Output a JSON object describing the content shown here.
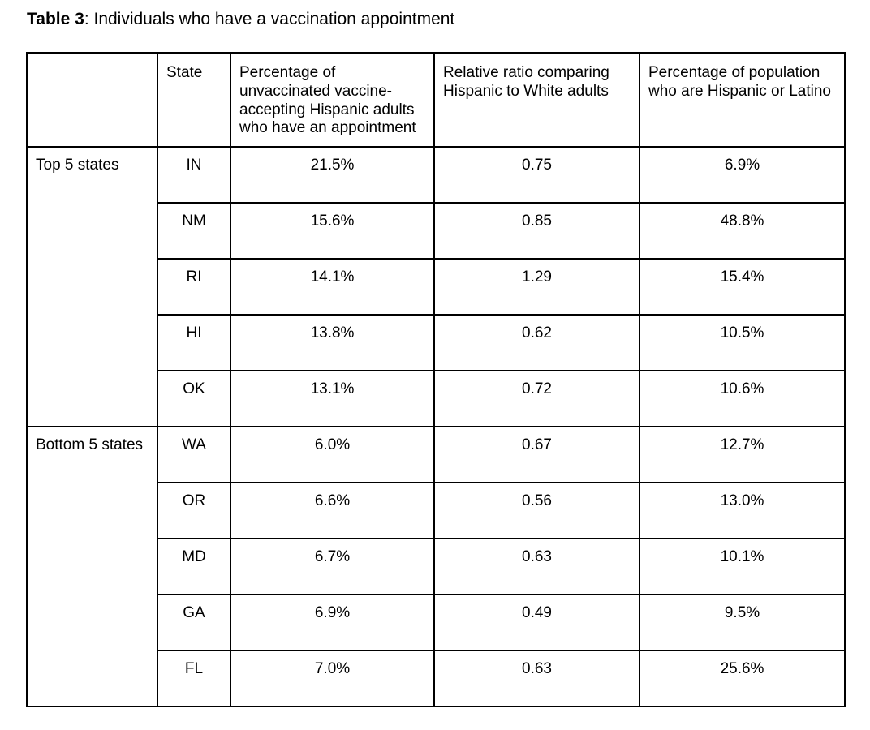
{
  "caption": {
    "bold": "Table 3",
    "text": ": Individuals who have a vaccination appointment"
  },
  "colors": {
    "background": "#ffffff",
    "text": "#000000",
    "border": "#000000"
  },
  "table": {
    "columns": {
      "group": "",
      "state": "State",
      "pct_appointment": "Percentage of unvaccinated vaccine-accepting Hispanic adults who have an appointment",
      "relative_ratio": "Relative ratio comparing Hispanic to White adults",
      "pct_hispanic": "Percentage of population who are Hispanic or Latino"
    },
    "groups": [
      {
        "label": "Top 5 states",
        "rows": [
          {
            "state": "IN",
            "pct_appointment": "21.5%",
            "relative_ratio": "0.75",
            "pct_hispanic": "6.9%"
          },
          {
            "state": "NM",
            "pct_appointment": "15.6%",
            "relative_ratio": "0.85",
            "pct_hispanic": "48.8%"
          },
          {
            "state": "RI",
            "pct_appointment": "14.1%",
            "relative_ratio": "1.29",
            "pct_hispanic": "15.4%"
          },
          {
            "state": "HI",
            "pct_appointment": "13.8%",
            "relative_ratio": "0.62",
            "pct_hispanic": "10.5%"
          },
          {
            "state": "OK",
            "pct_appointment": "13.1%",
            "relative_ratio": "0.72",
            "pct_hispanic": "10.6%"
          }
        ]
      },
      {
        "label": "Bottom 5 states",
        "rows": [
          {
            "state": "WA",
            "pct_appointment": "6.0%",
            "relative_ratio": "0.67",
            "pct_hispanic": "12.7%"
          },
          {
            "state": "OR",
            "pct_appointment": "6.6%",
            "relative_ratio": "0.56",
            "pct_hispanic": "13.0%"
          },
          {
            "state": "MD",
            "pct_appointment": "6.7%",
            "relative_ratio": "0.63",
            "pct_hispanic": "10.1%"
          },
          {
            "state": "GA",
            "pct_appointment": "6.9%",
            "relative_ratio": "0.49",
            "pct_hispanic": "9.5%"
          },
          {
            "state": "FL",
            "pct_appointment": "7.0%",
            "relative_ratio": "0.63",
            "pct_hispanic": "25.6%"
          }
        ]
      }
    ]
  },
  "chart_data": {
    "type": "table",
    "title": "Table 3: Individuals who have a vaccination appointment",
    "columns": [
      "",
      "State",
      "Percentage of unvaccinated vaccine-accepting Hispanic adults who have an appointment",
      "Relative ratio comparing Hispanic to White adults",
      "Percentage of population who are Hispanic or Latino"
    ],
    "rows": [
      [
        "Top 5 states",
        "IN",
        "21.5%",
        "0.75",
        "6.9%"
      ],
      [
        "Top 5 states",
        "NM",
        "15.6%",
        "0.85",
        "48.8%"
      ],
      [
        "Top 5 states",
        "RI",
        "14.1%",
        "1.29",
        "15.4%"
      ],
      [
        "Top 5 states",
        "HI",
        "13.8%",
        "0.62",
        "10.5%"
      ],
      [
        "Top 5 states",
        "OK",
        "13.1%",
        "0.72",
        "10.6%"
      ],
      [
        "Bottom 5 states",
        "WA",
        "6.0%",
        "0.67",
        "12.7%"
      ],
      [
        "Bottom 5 states",
        "OR",
        "6.6%",
        "0.56",
        "13.0%"
      ],
      [
        "Bottom 5 states",
        "MD",
        "6.7%",
        "0.63",
        "10.1%"
      ],
      [
        "Bottom 5 states",
        "GA",
        "6.9%",
        "0.49",
        "9.5%"
      ],
      [
        "Bottom 5 states",
        "FL",
        "7.0%",
        "0.63",
        "25.6%"
      ]
    ],
    "numeric": {
      "pct_appointment": [
        21.5,
        15.6,
        14.1,
        13.8,
        13.1,
        6.0,
        6.6,
        6.7,
        6.9,
        7.0
      ],
      "relative_ratio": [
        0.75,
        0.85,
        1.29,
        0.62,
        0.72,
        0.67,
        0.56,
        0.63,
        0.49,
        0.63
      ],
      "pct_hispanic": [
        6.9,
        48.8,
        15.4,
        10.5,
        10.6,
        12.7,
        13.0,
        10.1,
        9.5,
        25.6
      ]
    }
  }
}
